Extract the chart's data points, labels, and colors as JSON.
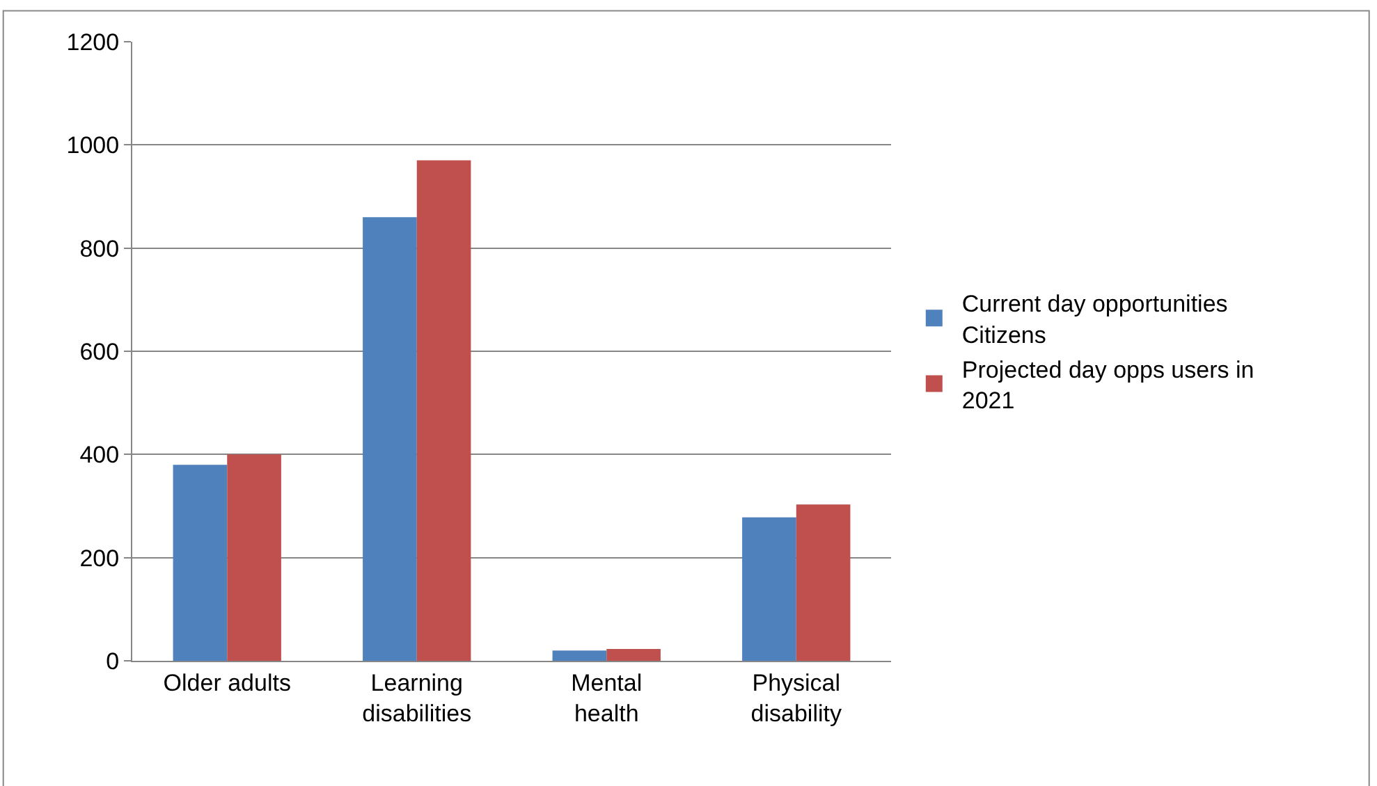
{
  "chart_data": {
    "type": "bar",
    "categories": [
      "Older adults",
      "Learning disabilities",
      "Mental health",
      "Physical disability"
    ],
    "series": [
      {
        "name": "Current day opportunities Citizens",
        "color": "#4f81bd",
        "values": [
          380,
          860,
          20,
          278
        ]
      },
      {
        "name": "Projected day opps users in 2021",
        "color": "#c0504d",
        "values": [
          400,
          970,
          23,
          303
        ]
      }
    ],
    "ylim": [
      0,
      1200
    ],
    "yticks": [
      0,
      200,
      400,
      600,
      800,
      1000,
      1200
    ],
    "grid": "y",
    "legend": "right"
  }
}
